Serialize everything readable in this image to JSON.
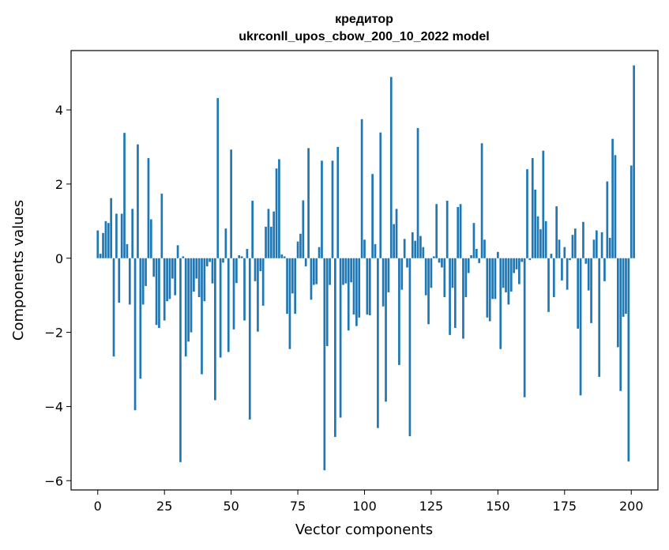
{
  "chart_data": {
    "type": "bar",
    "title_line1": "кредитор",
    "title_line2": "ukrconll_upos_cbow_200_10_2022 model",
    "xlabel": "Vector components",
    "ylabel": "Components values",
    "xlim": [
      -10,
      210
    ],
    "ylim": [
      -6.25,
      5.6
    ],
    "xticks": [
      0,
      25,
      50,
      75,
      100,
      125,
      150,
      175,
      200
    ],
    "xtick_labels": [
      "0",
      "25",
      "50",
      "75",
      "100",
      "125",
      "150",
      "175",
      "200"
    ],
    "yticks": [
      -6,
      -4,
      -2,
      0,
      2,
      4
    ],
    "ytick_labels": [
      "−6",
      "−4",
      "−2",
      "0",
      "2",
      "4"
    ],
    "grid": false,
    "legend": "none",
    "bar_color": "#1f77b4",
    "values": [
      0.75,
      0.12,
      0.68,
      1.0,
      0.95,
      1.62,
      -2.65,
      1.2,
      -1.2,
      1.2,
      3.38,
      0.38,
      -1.25,
      1.33,
      -4.1,
      3.07,
      -3.25,
      -1.25,
      -0.75,
      2.7,
      1.05,
      -0.5,
      -1.8,
      -1.88,
      1.74,
      -1.68,
      -1.16,
      -1.1,
      -0.55,
      -1.0,
      0.35,
      -5.5,
      0.05,
      -2.65,
      -2.25,
      -2.0,
      -0.9,
      -0.55,
      -1.05,
      -3.13,
      -1.16,
      -0.22,
      -0.1,
      -0.68,
      -3.83,
      4.32,
      -2.68,
      -0.12,
      0.8,
      -2.53,
      2.93,
      -1.92,
      -0.67,
      0.08,
      0.05,
      -1.68,
      0.25,
      -4.35,
      1.55,
      -0.62,
      -1.98,
      -0.35,
      -1.28,
      0.85,
      1.33,
      0.85,
      1.26,
      2.42,
      2.67,
      0.1,
      0.05,
      -1.5,
      -2.45,
      -0.95,
      -1.5,
      0.45,
      0.66,
      1.56,
      -0.22,
      2.97,
      -1.12,
      -0.72,
      -0.7,
      0.3,
      2.63,
      -5.72,
      -2.37,
      -0.72,
      2.63,
      -4.82,
      3.0,
      -4.3,
      -0.72,
      -0.68,
      -1.95,
      -0.65,
      -1.52,
      -1.83,
      -1.6,
      3.75,
      0.5,
      -1.52,
      -1.54,
      2.27,
      0.38,
      -4.58,
      3.39,
      -1.3,
      -3.87,
      -0.92,
      4.89,
      0.92,
      1.33,
      -2.88,
      -0.85,
      0.52,
      -0.25,
      -4.8,
      0.7,
      0.47,
      3.51,
      0.6,
      0.3,
      -1.0,
      -1.78,
      -0.8,
      0.05,
      1.46,
      -0.12,
      -0.25,
      -1.05,
      1.55,
      -2.07,
      -0.8,
      -1.88,
      1.38,
      1.46,
      -2.17,
      -1.05,
      -0.4,
      0.08,
      0.95,
      0.25,
      -0.13,
      3.1,
      0.5,
      -1.6,
      -1.7,
      -1.1,
      -1.1,
      0.17,
      -2.45,
      -0.8,
      -0.92,
      -1.25,
      -0.9,
      -0.4,
      -0.3,
      -0.7,
      -0.1,
      -3.75,
      2.4,
      -0.05,
      2.7,
      1.85,
      1.13,
      0.78,
      2.9,
      1.0,
      -1.45,
      0.12,
      -1.05,
      1.4,
      0.5,
      -0.6,
      0.3,
      -0.85,
      -0.05,
      0.63,
      0.8,
      -1.9,
      -3.7,
      0.98,
      -0.15,
      -0.87,
      -1.75,
      0.5,
      0.75,
      -3.2,
      0.7,
      -0.62,
      2.07,
      0.55,
      3.22,
      2.78,
      -2.4,
      -3.58,
      -1.58,
      -1.5,
      -5.48,
      2.5,
      5.2
    ]
  }
}
